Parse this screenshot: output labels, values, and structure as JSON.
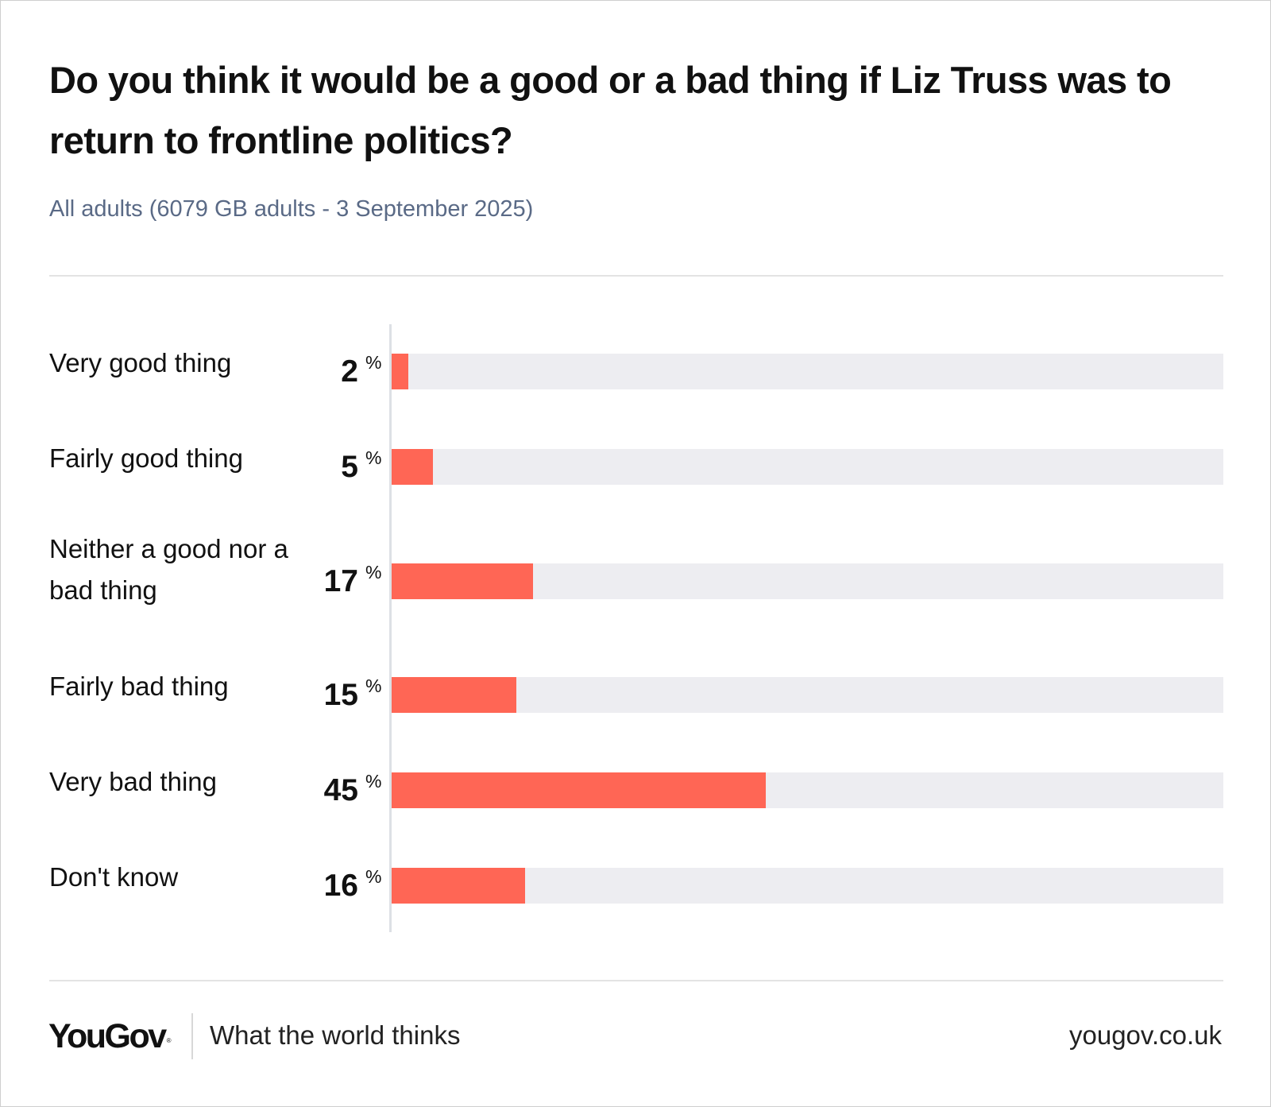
{
  "header": {
    "title": "Do you think it would be a good or a bad thing if Liz Truss was to return to frontline politics?",
    "subtitle": "All adults (6079 GB adults - 3 September 2025)"
  },
  "footer": {
    "logo": "YouGov",
    "logo_mark": "®",
    "tagline": "What the world thinks",
    "site": "yougov.co.uk"
  },
  "colors": {
    "bar": "#ff6655",
    "track": "#ededf1",
    "subtitle": "#5a6a86"
  },
  "chart_data": {
    "type": "bar",
    "orientation": "horizontal",
    "categories": [
      "Very good thing",
      "Fairly good thing",
      "Neither a good nor a bad thing",
      "Fairly bad thing",
      "Very bad thing",
      "Don't know"
    ],
    "values": [
      2,
      5,
      17,
      15,
      45,
      16
    ],
    "unit": "%",
    "xlim": [
      0,
      100
    ],
    "grid": false,
    "legend": "none"
  }
}
